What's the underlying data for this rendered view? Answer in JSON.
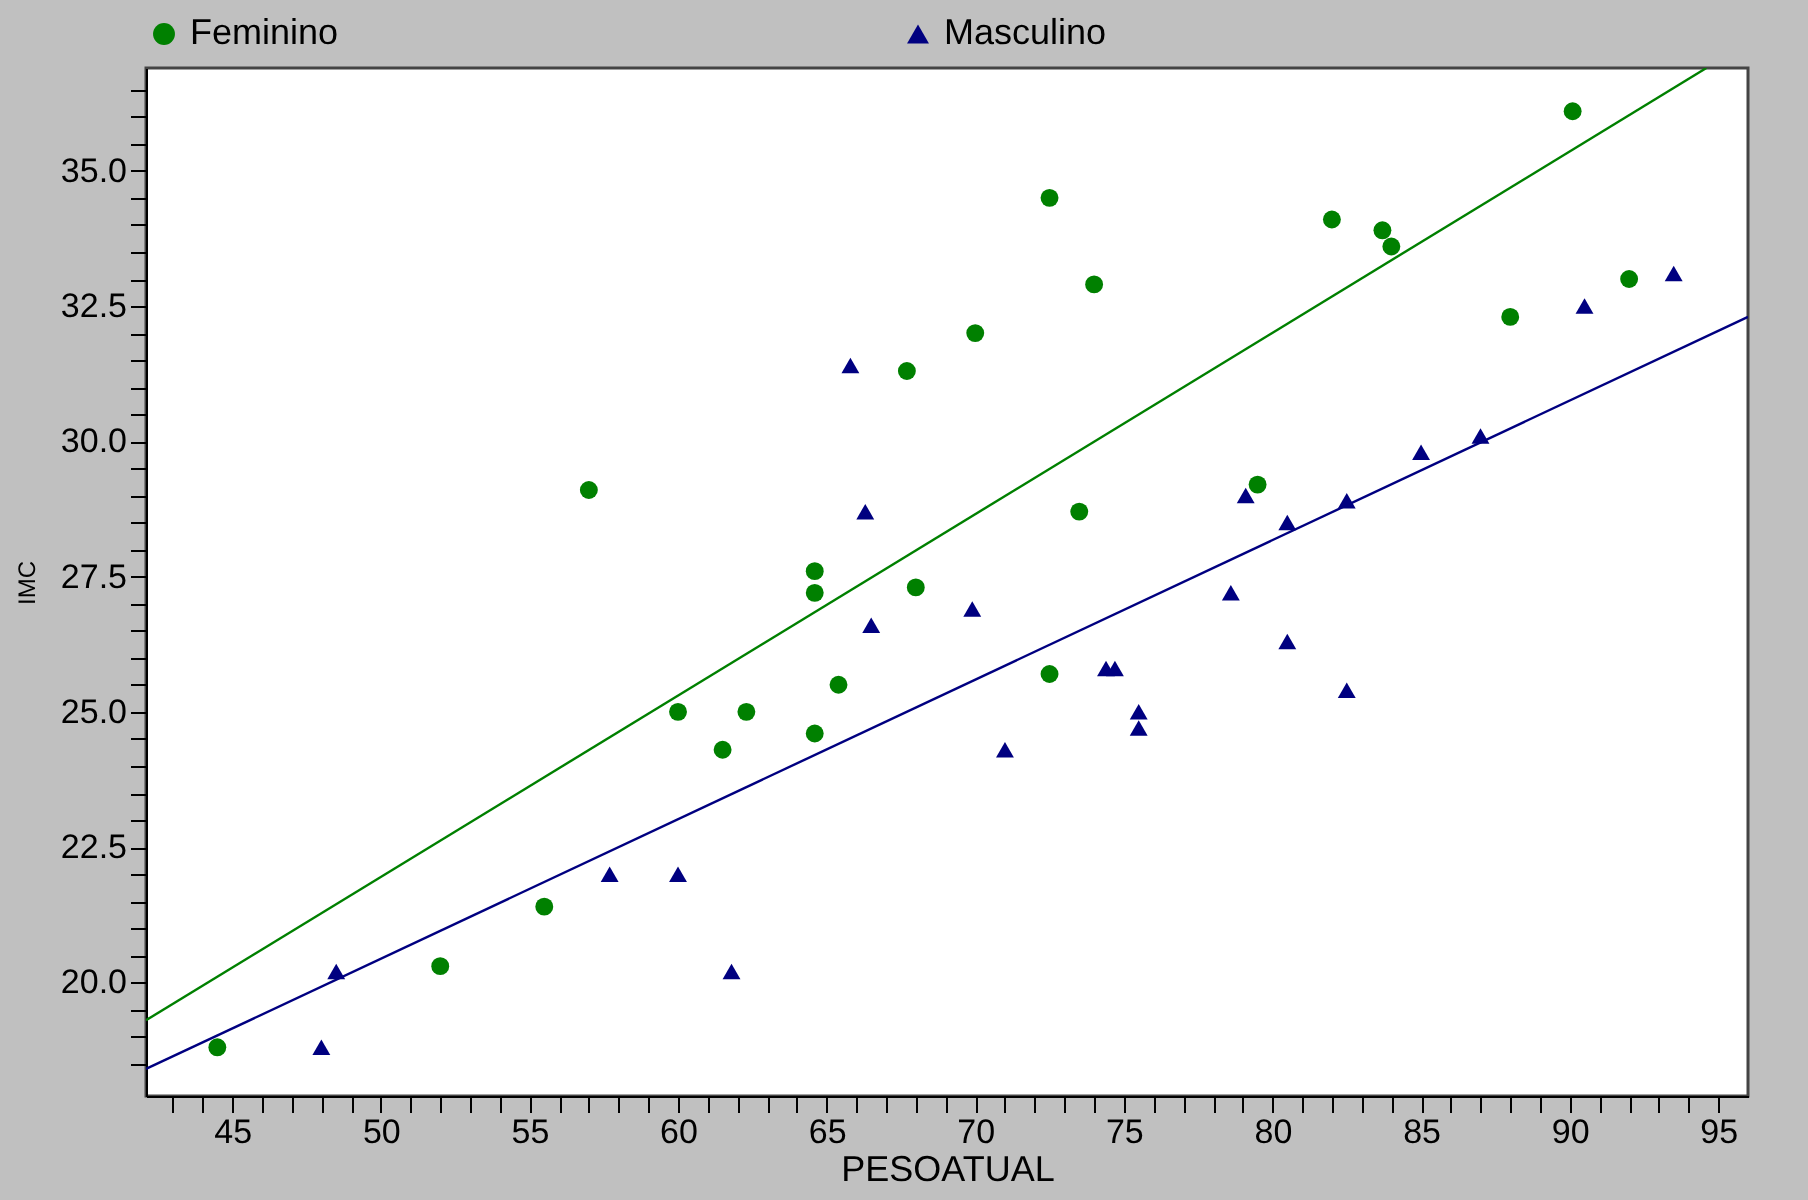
{
  "chart_data": {
    "type": "scatter",
    "xlabel": "PESOATUAL",
    "ylabel": "IMC",
    "legend": "top",
    "grid": false,
    "xlim": [
      42.1,
      96
    ],
    "ylim": [
      17.9,
      36.9
    ],
    "xticks": [
      {
        "value": 43,
        "label": null
      },
      {
        "value": 44,
        "label": null
      },
      45,
      {
        "value": 46,
        "label": null
      },
      {
        "value": 47,
        "label": null
      },
      {
        "value": 48,
        "label": null
      },
      {
        "value": 49,
        "label": null
      },
      50,
      {
        "value": 51,
        "label": null
      },
      {
        "value": 52,
        "label": null
      },
      {
        "value": 53,
        "label": null
      },
      {
        "value": 54,
        "label": null
      },
      55,
      {
        "value": 56,
        "label": null
      },
      {
        "value": 57,
        "label": null
      },
      {
        "value": 58,
        "label": null
      },
      {
        "value": 59,
        "label": null
      },
      60,
      {
        "value": 61,
        "label": null
      },
      {
        "value": 62,
        "label": null
      },
      {
        "value": 63,
        "label": null
      },
      {
        "value": 64,
        "label": null
      },
      65,
      {
        "value": 66,
        "label": null
      },
      {
        "value": 67,
        "label": null
      },
      {
        "value": 68,
        "label": null
      },
      {
        "value": 69,
        "label": null
      },
      70,
      {
        "value": 71,
        "label": null
      },
      {
        "value": 72,
        "label": null
      },
      {
        "value": 73,
        "label": null
      },
      {
        "value": 74,
        "label": null
      },
      75,
      {
        "value": 76,
        "label": null
      },
      {
        "value": 77,
        "label": null
      },
      {
        "value": 78,
        "label": null
      },
      {
        "value": 79,
        "label": null
      },
      80,
      {
        "value": 81,
        "label": null
      },
      {
        "value": 82,
        "label": null
      },
      {
        "value": 83,
        "label": null
      },
      {
        "value": 84,
        "label": null
      },
      85,
      {
        "value": 86,
        "label": null
      },
      {
        "value": 87,
        "label": null
      },
      {
        "value": 88,
        "label": null
      },
      {
        "value": 89,
        "label": null
      },
      90,
      {
        "value": 91,
        "label": null
      },
      {
        "value": 92,
        "label": null
      },
      {
        "value": 93,
        "label": null
      },
      {
        "value": 94,
        "label": null
      },
      95
    ],
    "yticks": [
      {
        "value": 18.5,
        "label": null
      },
      {
        "value": 19,
        "label": null
      },
      {
        "value": 19.5,
        "label": null
      },
      {
        "value": 20,
        "label": "20.0"
      },
      {
        "value": 20.5,
        "label": null
      },
      {
        "value": 21,
        "label": null
      },
      {
        "value": 21.5,
        "label": null
      },
      {
        "value": 22,
        "label": null
      },
      22.5,
      {
        "value": 23,
        "label": null
      },
      {
        "value": 23.5,
        "label": null
      },
      {
        "value": 24,
        "label": null
      },
      {
        "value": 24.5,
        "label": null
      },
      {
        "value": 25,
        "label": "25.0"
      },
      {
        "value": 25.5,
        "label": null
      },
      {
        "value": 26,
        "label": null
      },
      {
        "value": 26.5,
        "label": null
      },
      {
        "value": 27,
        "label": null
      },
      27.5,
      {
        "value": 28,
        "label": null
      },
      {
        "value": 28.5,
        "label": null
      },
      {
        "value": 29,
        "label": null
      },
      {
        "value": 29.5,
        "label": null
      },
      {
        "value": 30,
        "label": "30.0"
      },
      {
        "value": 30.5,
        "label": null
      },
      {
        "value": 31,
        "label": null
      },
      {
        "value": 31.5,
        "label": null
      },
      {
        "value": 32,
        "label": null
      },
      32.5,
      {
        "value": 33,
        "label": null
      },
      {
        "value": 33.5,
        "label": null
      },
      {
        "value": 34,
        "label": null
      },
      {
        "value": 34.5,
        "label": null
      },
      {
        "value": 35,
        "label": "35.0"
      },
      {
        "value": 35.5,
        "label": null
      },
      {
        "value": 36,
        "label": null
      },
      {
        "value": 36.5,
        "label": null
      }
    ],
    "series": [
      {
        "name": "Feminino",
        "marker": "circle",
        "color": "#008000",
        "x": [
          44.5,
          52.0,
          55.5,
          57.0,
          60.0,
          61.5,
          62.3,
          64.6,
          64.6,
          64.6,
          65.4,
          67.7,
          68.0,
          70.0,
          72.5,
          72.5,
          73.5,
          74.0,
          79.5,
          82.0,
          83.7,
          84.0,
          88.0,
          90.1,
          92.0
        ],
        "values": [
          18.8,
          20.3,
          21.4,
          29.1,
          25.0,
          24.3,
          25.0,
          24.6,
          27.6,
          27.2,
          25.5,
          31.3,
          27.3,
          32.0,
          34.5,
          25.7,
          28.7,
          32.9,
          29.2,
          34.1,
          33.9,
          33.6,
          32.3,
          36.1,
          33.0
        ]
      },
      {
        "name": "Masculino",
        "marker": "triangle",
        "color": "#000080",
        "x": [
          48.0,
          48.5,
          57.7,
          60.0,
          61.8,
          65.8,
          66.3,
          66.5,
          69.9,
          71.0,
          74.4,
          74.7,
          75.5,
          75.5,
          78.6,
          79.1,
          80.5,
          80.5,
          82.5,
          82.5,
          85.0,
          87.0,
          90.5,
          93.5
        ],
        "values": [
          18.8,
          20.2,
          22.0,
          22.0,
          20.2,
          31.4,
          28.7,
          26.6,
          26.9,
          24.3,
          25.8,
          25.8,
          25.0,
          24.7,
          27.2,
          29.0,
          28.5,
          26.3,
          28.9,
          25.4,
          29.8,
          30.1,
          32.5,
          33.1
        ]
      },
      {
        "type": "line",
        "marker": "none",
        "color": "#008000",
        "x": [
          42.1,
          94.6
        ],
        "values": [
          19.3,
          36.9
        ]
      },
      {
        "type": "line",
        "marker": "none",
        "color": "#000080",
        "x": [
          42.1,
          96.0
        ],
        "values": [
          18.4,
          32.3
        ]
      }
    ]
  }
}
